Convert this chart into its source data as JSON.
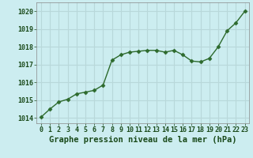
{
  "x": [
    0,
    1,
    2,
    3,
    4,
    5,
    6,
    7,
    8,
    9,
    10,
    11,
    12,
    13,
    14,
    15,
    16,
    17,
    18,
    19,
    20,
    21,
    22,
    23
  ],
  "y": [
    1014.05,
    1014.5,
    1014.9,
    1015.05,
    1015.35,
    1015.45,
    1015.55,
    1015.85,
    1017.25,
    1017.55,
    1017.7,
    1017.75,
    1017.8,
    1017.8,
    1017.7,
    1017.8,
    1017.55,
    1017.2,
    1017.15,
    1017.35,
    1018.0,
    1018.9,
    1019.35,
    1020.0
  ],
  "ylim": [
    1013.7,
    1020.5
  ],
  "yticks": [
    1014,
    1015,
    1016,
    1017,
    1018,
    1019,
    1020
  ],
  "xlim": [
    -0.5,
    23.5
  ],
  "xticks": [
    0,
    1,
    2,
    3,
    4,
    5,
    6,
    7,
    8,
    9,
    10,
    11,
    12,
    13,
    14,
    15,
    16,
    17,
    18,
    19,
    20,
    21,
    22,
    23
  ],
  "xlabel": "Graphe pression niveau de la mer (hPa)",
  "line_color": "#2d6a2d",
  "marker": "D",
  "marker_size": 2.5,
  "bg_color": "#ccedf0",
  "grid_color": "#b8d8da",
  "axis_label_color": "#1a4a1a",
  "tick_label_color": "#1a4a1a",
  "xlabel_fontsize": 7.5,
  "tick_fontsize": 6,
  "line_width": 1.0
}
